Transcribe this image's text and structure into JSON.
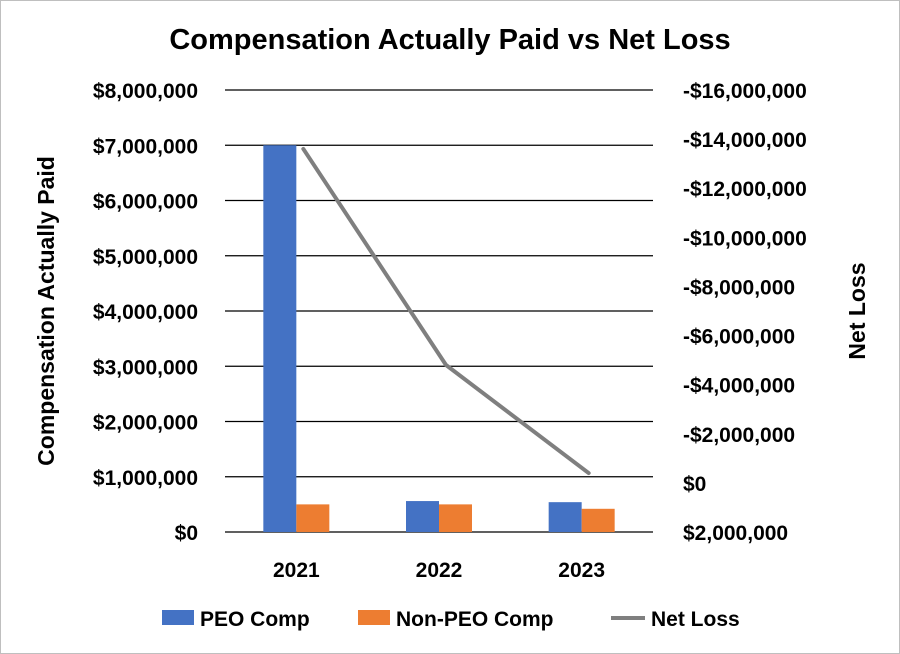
{
  "chart_data": {
    "type": "bar",
    "title": "Compensation Actually Paid vs Net Loss",
    "categories": [
      "2021",
      "2022",
      "2023"
    ],
    "ylabel": "Compensation Actually Paid",
    "y2label": "Net Loss",
    "ylim": [
      0,
      8000000
    ],
    "y2lim": [
      -16000000,
      2000000
    ],
    "y_ticks": [
      {
        "value": 0,
        "label": "$0"
      },
      {
        "value": 1000000,
        "label": "$1,000,000"
      },
      {
        "value": 2000000,
        "label": "$2,000,000"
      },
      {
        "value": 3000000,
        "label": "$3,000,000"
      },
      {
        "value": 4000000,
        "label": "$4,000,000"
      },
      {
        "value": 5000000,
        "label": "$5,000,000"
      },
      {
        "value": 6000000,
        "label": "$6,000,000"
      },
      {
        "value": 7000000,
        "label": "$7,000,000"
      },
      {
        "value": 8000000,
        "label": "$8,000,000"
      }
    ],
    "y2_ticks": [
      {
        "value": 2000000,
        "label": "$2,000,000"
      },
      {
        "value": 0,
        "label": "$0"
      },
      {
        "value": -2000000,
        "label": "-$2,000,000"
      },
      {
        "value": -4000000,
        "label": "-$4,000,000"
      },
      {
        "value": -6000000,
        "label": "-$6,000,000"
      },
      {
        "value": -8000000,
        "label": "-$8,000,000"
      },
      {
        "value": -10000000,
        "label": "-$10,000,000"
      },
      {
        "value": -12000000,
        "label": "-$12,000,000"
      },
      {
        "value": -14000000,
        "label": "-$14,000,000"
      },
      {
        "value": -16000000,
        "label": "-$16,000,000"
      }
    ],
    "series": [
      {
        "name": "PEO Comp",
        "type": "bar",
        "axis": "left",
        "color": "#4472C4",
        "values": [
          7000000,
          560000,
          540000
        ]
      },
      {
        "name": "Non-PEO Comp",
        "type": "bar",
        "axis": "left",
        "color": "#ED7D31",
        "values": [
          500000,
          500000,
          420000
        ]
      },
      {
        "name": "Net Loss",
        "type": "line",
        "axis": "right",
        "color": "#7F7F7F",
        "values": [
          -13600000,
          -4800000,
          -400000
        ]
      }
    ],
    "grid": true,
    "legend": "bottom"
  }
}
